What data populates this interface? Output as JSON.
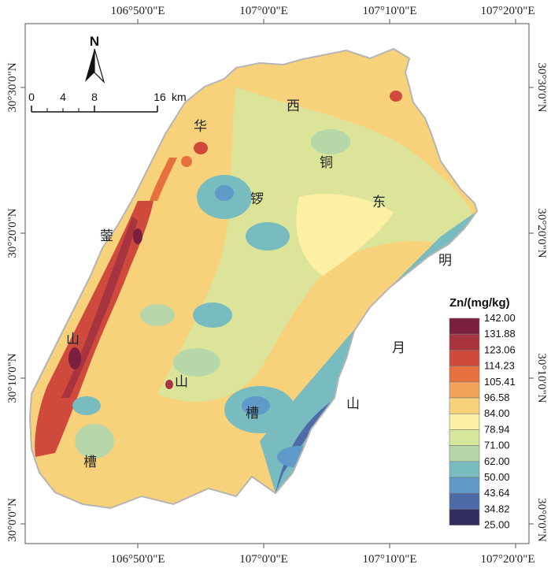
{
  "map": {
    "top_lon_labels": [
      "106°50'0\"E",
      "107°0'0\"E",
      "107°10'0\"E",
      "107°20'0\"E"
    ],
    "bottom_lon_labels": [
      "106°50'0\"E",
      "107°0'0\"E",
      "107°10'0\"E",
      "107°20'0\"E"
    ],
    "left_lat_labels": [
      "30°30'0\"N",
      "30°20'0\"N",
      "30°10'0\"N",
      "30°0'0\"N"
    ],
    "right_lat_labels": [
      "30°30'0\"N",
      "30°20'0\"N",
      "30°10'0\"N",
      "30°0'0\"N"
    ],
    "place_labels": {
      "hua": "华",
      "ying": "蓥",
      "shan_left": "山",
      "xi": "西",
      "tong": "铜",
      "luo": "锣",
      "dong": "东",
      "ming": "明",
      "yue": "月",
      "shan_right": "山",
      "shan_mid": "山",
      "cao_mid": "槽",
      "cao_left": "槽"
    }
  },
  "north_arrow": {
    "label": "N"
  },
  "scale_bar": {
    "ticks": [
      "0",
      "4",
      "8",
      "16"
    ],
    "unit": "km"
  },
  "legend": {
    "title": "Zn/(mg/kg)",
    "breaks": [
      "142.00",
      "131.88",
      "123.06",
      "114.23",
      "105.41",
      "96.58",
      "84.00",
      "78.94",
      "71.00",
      "62.00",
      "50.00",
      "43.64",
      "34.82",
      "25.00"
    ],
    "colors": [
      "#7a1f3d",
      "#a8343f",
      "#cf4a3c",
      "#e6703e",
      "#f0a15a",
      "#f8d27a",
      "#fcf0a4",
      "#d6e89e",
      "#b6d7a8",
      "#78bcbf",
      "#5f9ac8",
      "#4d6aa9",
      "#312e62"
    ]
  }
}
